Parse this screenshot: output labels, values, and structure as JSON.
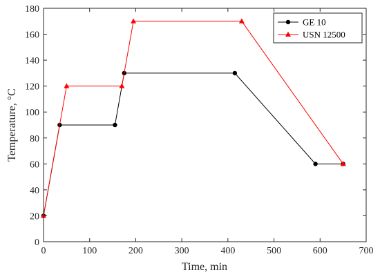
{
  "chart_data": {
    "type": "line",
    "title": "",
    "xlabel": "Time, min",
    "ylabel": "Temperature, °C",
    "xlim": [
      0,
      700
    ],
    "ylim": [
      0,
      180
    ],
    "xticks": [
      0,
      100,
      200,
      300,
      400,
      500,
      600,
      700
    ],
    "yticks": [
      0,
      20,
      40,
      60,
      80,
      100,
      120,
      140,
      160,
      180
    ],
    "grid": false,
    "legend_position": "top-right",
    "series": [
      {
        "name": "GE 10",
        "color": "#000000",
        "marker": "circle",
        "x": [
          0,
          35,
          155,
          175,
          415,
          590,
          650
        ],
        "y": [
          20,
          90,
          90,
          130,
          130,
          60,
          60
        ]
      },
      {
        "name": "USN 12500",
        "color": "#ff0000",
        "marker": "triangle",
        "x": [
          0,
          50,
          170,
          195,
          430,
          650
        ],
        "y": [
          20,
          120,
          120,
          170,
          170,
          60
        ]
      }
    ]
  }
}
